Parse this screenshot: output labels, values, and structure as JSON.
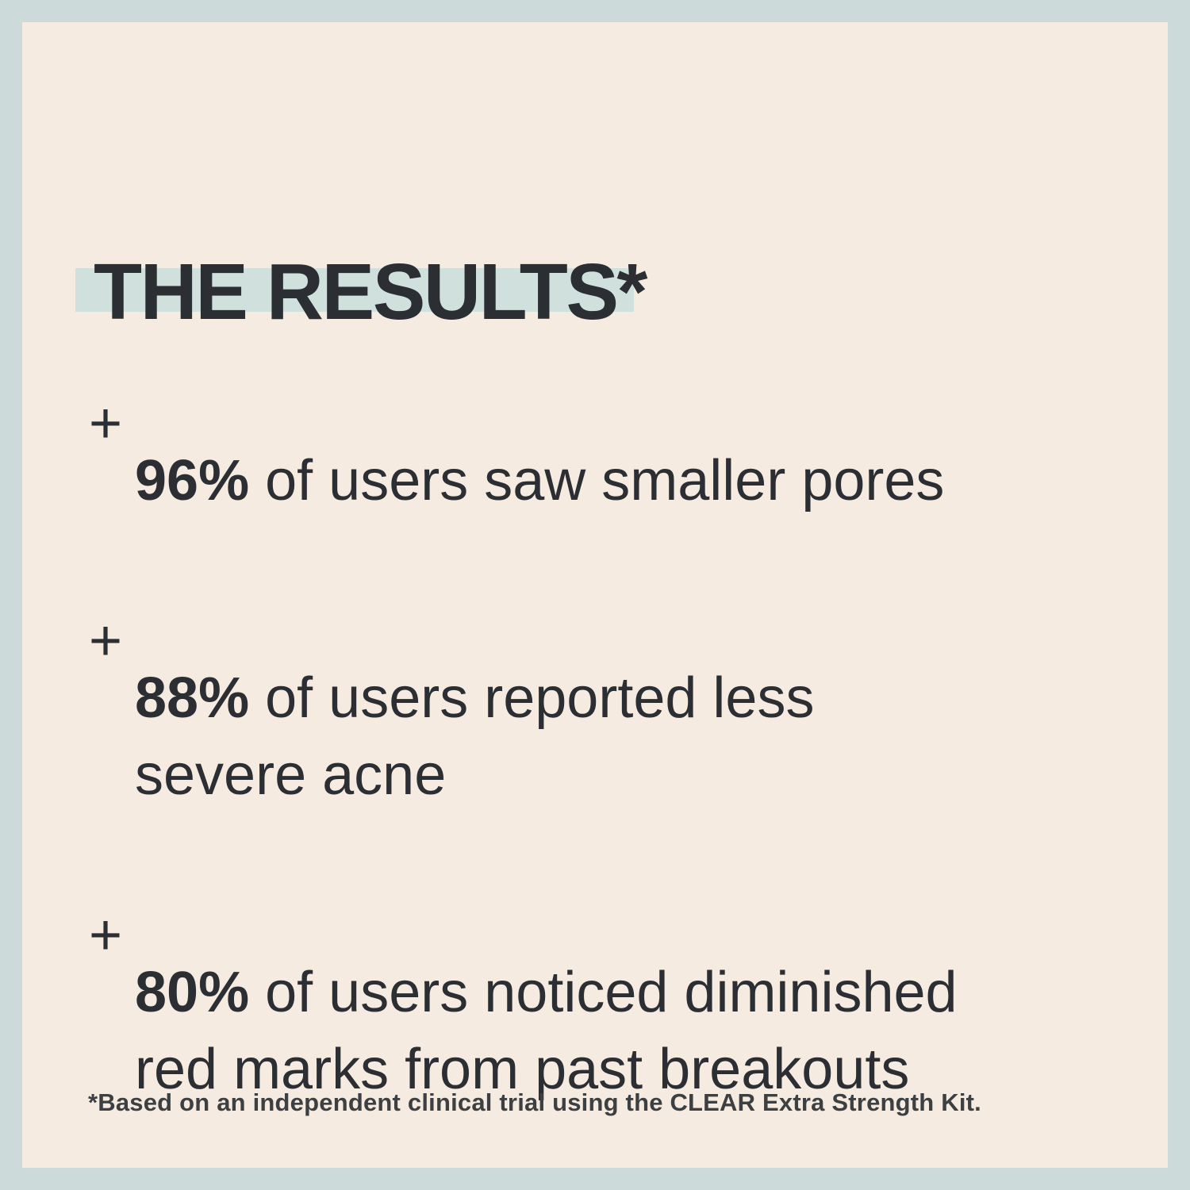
{
  "title": "THE RESULTS*",
  "stats": {
    "marker": "+",
    "items": [
      {
        "percent": "96%",
        "text": "of users saw smaller pores"
      },
      {
        "percent": "88%",
        "text": "of users reported less\nsevere acne"
      },
      {
        "percent": "80%",
        "text": "of users noticed diminished\nred marks from past breakouts"
      }
    ]
  },
  "footnote": "*Based on an independent clinical trial using the CLEAR Extra Strength Kit.",
  "colors": {
    "background_border": "#ccdbd9",
    "panel": "#f5ebe0",
    "title_highlight": "#cfe0dd",
    "text": "#2b2e33",
    "footnote_text": "#3d4043"
  }
}
